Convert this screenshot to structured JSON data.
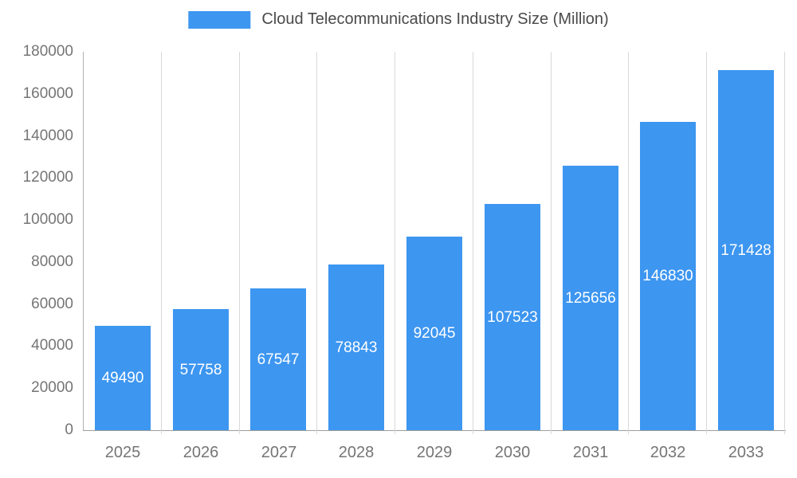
{
  "chart_data": {
    "type": "bar",
    "title": "Cloud Telecommunications Industry Size (Million)",
    "categories": [
      "2025",
      "2026",
      "2027",
      "2028",
      "2029",
      "2030",
      "2031",
      "2032",
      "2033"
    ],
    "values": [
      49490,
      57758,
      67547,
      78843,
      92045,
      107523,
      125656,
      146830,
      171428
    ],
    "xlabel": "",
    "ylabel": "",
    "ylim": [
      0,
      180000
    ],
    "yticks": [
      0,
      20000,
      40000,
      60000,
      80000,
      100000,
      120000,
      140000,
      160000,
      180000
    ],
    "legend_position": "top-center",
    "grid": "vertical",
    "value_labels": "inside-center-white",
    "colors": {
      "bar": "#3D96F0",
      "bar_value_label": "#FFFFFF",
      "axis_text": "#757575",
      "legend_text": "#4A4A4A",
      "gridline": "#D9D9D9",
      "axis_line": "#9E9E9E",
      "background": "#FFFFFF"
    }
  }
}
